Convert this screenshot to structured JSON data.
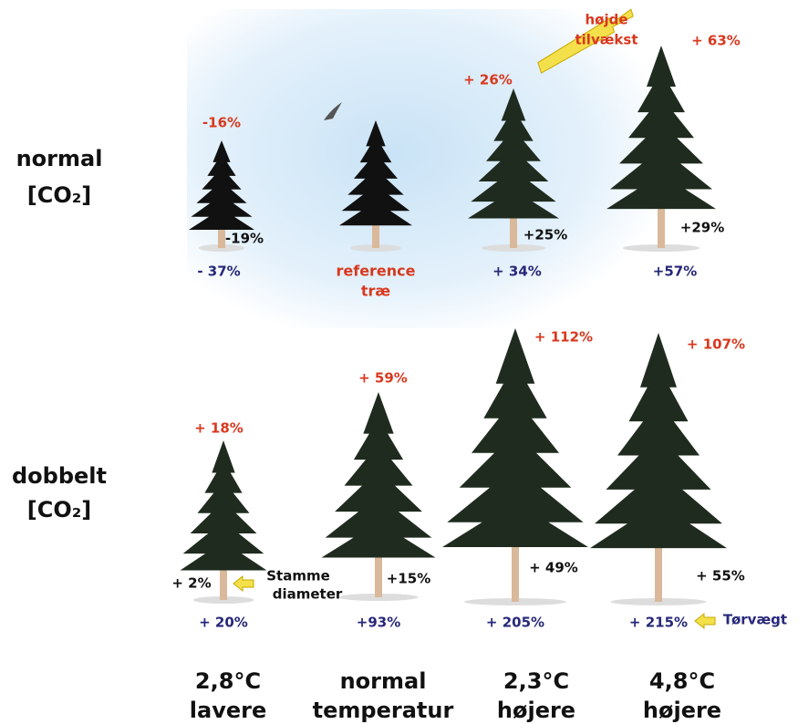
{
  "rows": [
    {
      "name": "normal",
      "gas": "[CO₂]",
      "trees": [
        {
          "height": "-16%",
          "diameter": "-19%",
          "weight": "- 37%"
        },
        {
          "reference": [
            "reference",
            "træ"
          ]
        },
        {
          "height": "+ 26%",
          "diameter": "+25%",
          "weight": "+ 34%"
        },
        {
          "height": "+ 63%",
          "diameter": "+29%",
          "weight": "+57%"
        }
      ]
    },
    {
      "name": "dobbelt",
      "gas": "[CO₂]",
      "trees": [
        {
          "height": "+ 18%",
          "diameter": "+ 2%",
          "weight": "+ 20%"
        },
        {
          "height": "+ 59%",
          "diameter": "+15%",
          "weight": "+93%"
        },
        {
          "height": "+ 112%",
          "diameter": "+ 49%",
          "weight": "+ 205%"
        },
        {
          "height": "+ 107%",
          "diameter": "+ 55%",
          "weight": "+ 215%"
        }
      ]
    }
  ],
  "columns": [
    {
      "line1": "2,8°C",
      "line2": "lavere"
    },
    {
      "line1": "normal",
      "line2": "temperatur"
    },
    {
      "line1": "2,3°C",
      "line2": "højere"
    },
    {
      "line1": "4,8°C",
      "line2": "højere"
    }
  ],
  "annotations": {
    "height_growth": [
      "højde",
      "tilvækst"
    ],
    "stem_diameter": [
      "Stamme",
      "diameter"
    ],
    "dry_weight": "Tørvægt"
  }
}
